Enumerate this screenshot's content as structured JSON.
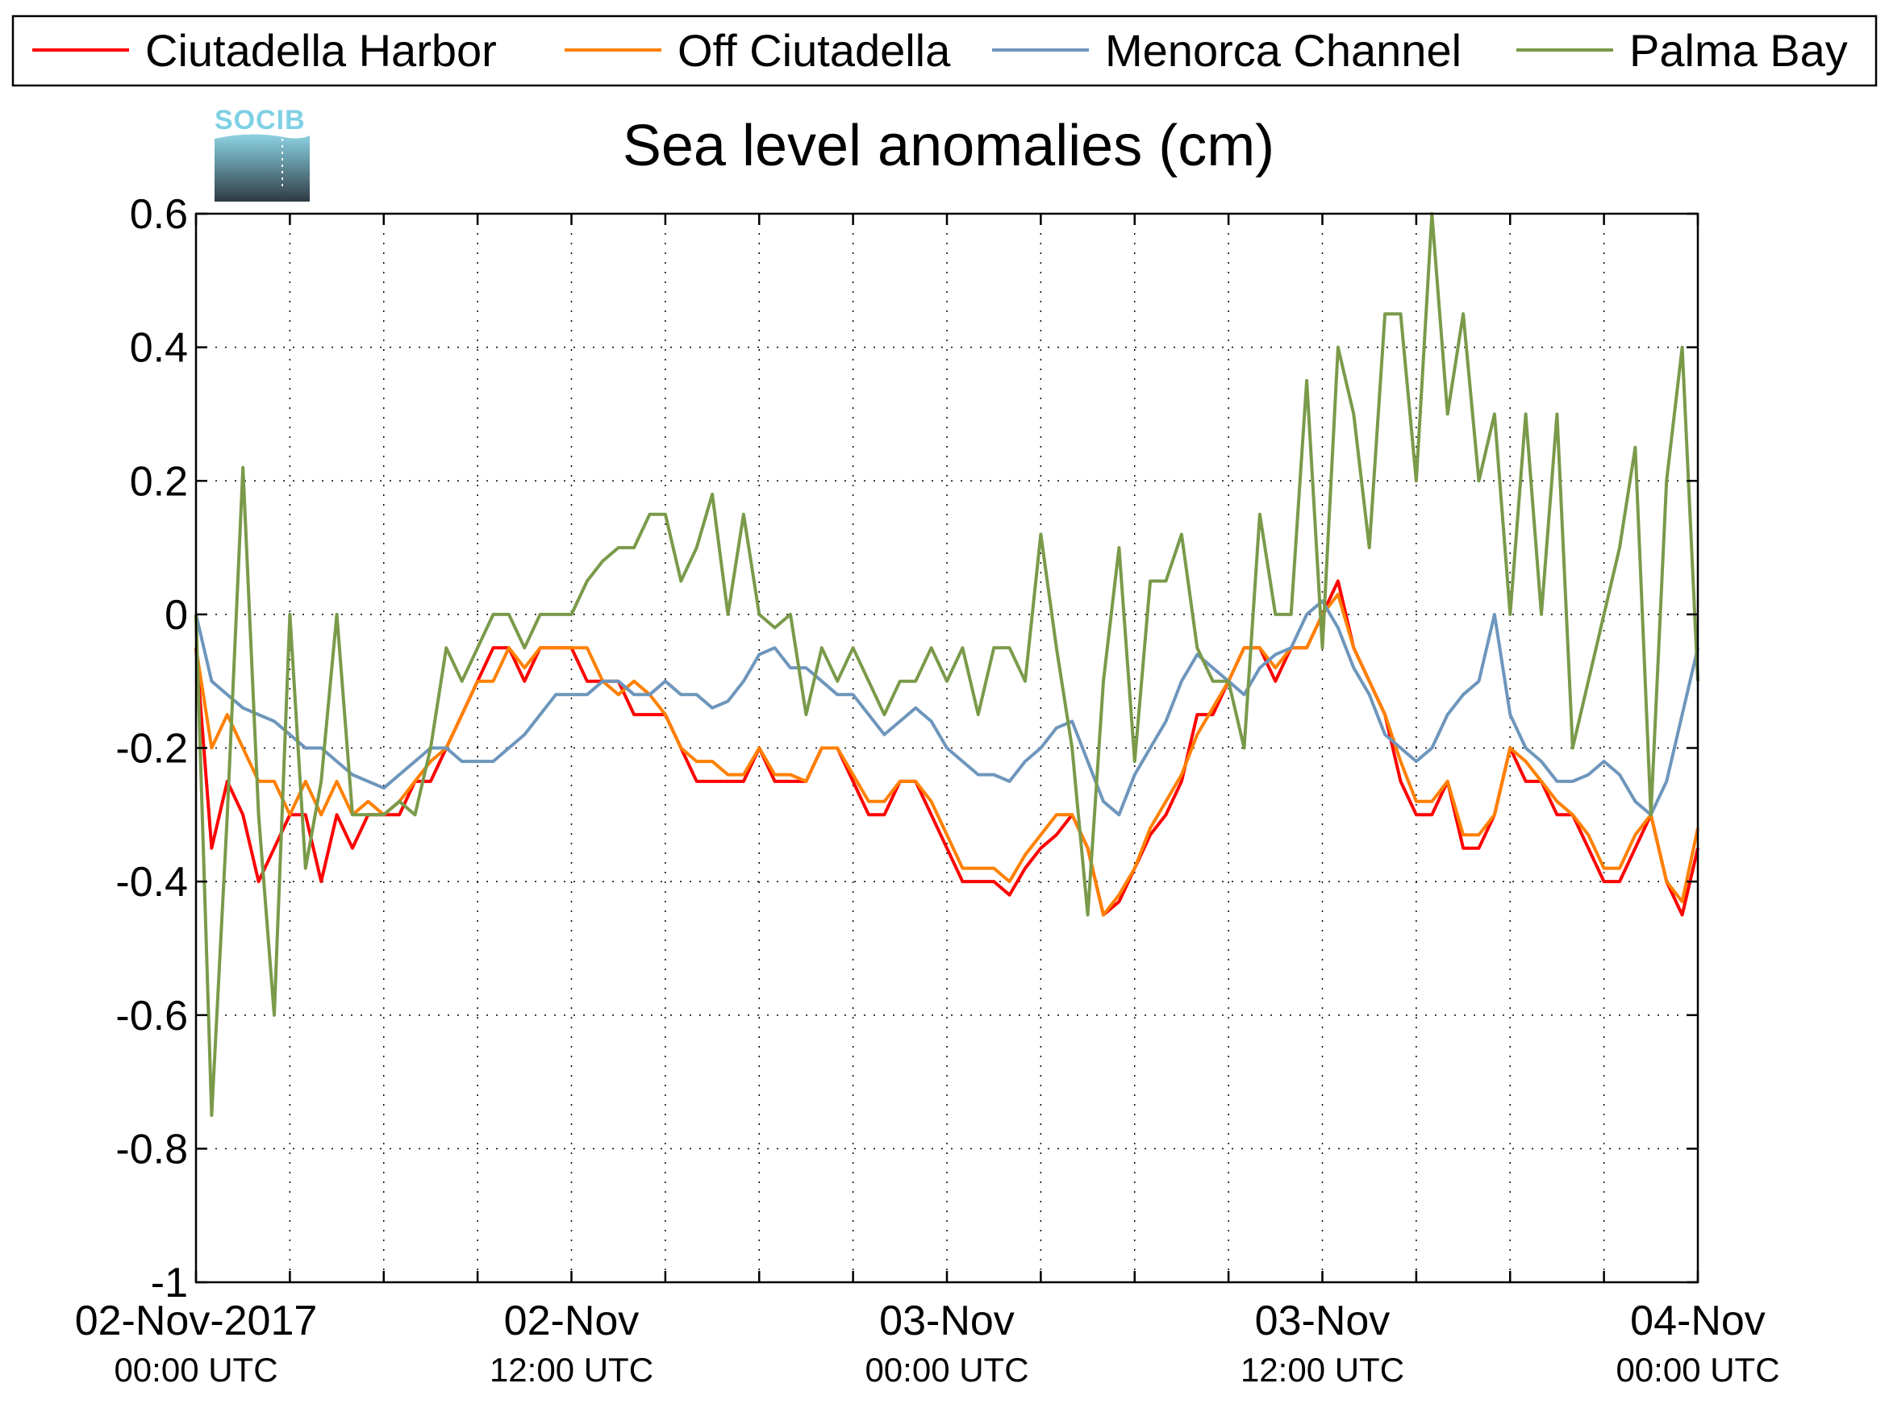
{
  "logo": {
    "text": "SOCIB"
  },
  "chart_data": {
    "type": "line",
    "title": "Sea level anomalies (cm)",
    "xlabel": "",
    "ylabel": "",
    "ylim": [
      -1,
      0.6
    ],
    "xlim_hours": [
      0,
      48
    ],
    "y_ticks": [
      {
        "value": 0.6,
        "label": "0.6"
      },
      {
        "value": 0.4,
        "label": "0.4"
      },
      {
        "value": 0.2,
        "label": "0.2"
      },
      {
        "value": 0,
        "label": "0"
      },
      {
        "value": -0.2,
        "label": "-0.2"
      },
      {
        "value": -0.4,
        "label": "-0.4"
      },
      {
        "value": -0.6,
        "label": "-0.6"
      },
      {
        "value": -0.8,
        "label": "-0.8"
      },
      {
        "value": -1,
        "label": "-1"
      }
    ],
    "x_ticks": [
      {
        "hour": 0,
        "date": "02-Nov-2017",
        "time": "00:00 UTC"
      },
      {
        "hour": 12,
        "date": "02-Nov",
        "time": "12:00 UTC"
      },
      {
        "hour": 24,
        "date": "03-Nov",
        "time": "00:00 UTC"
      },
      {
        "hour": 36,
        "date": "03-Nov",
        "time": "12:00 UTC"
      },
      {
        "hour": 48,
        "date": "04-Nov",
        "time": "00:00 UTC"
      }
    ],
    "x_minor_hours": [
      3,
      6,
      9,
      15,
      18,
      21,
      27,
      30,
      33,
      39,
      42,
      45
    ],
    "grid": true,
    "legend_position": "top",
    "series": [
      {
        "name": "Ciutadella Harbor",
        "color": "#ff0000",
        "x": [
          0,
          0.5,
          1,
          1.5,
          2,
          2.5,
          3,
          3.5,
          4,
          4.5,
          5,
          5.5,
          6,
          6.5,
          7,
          7.5,
          8,
          8.5,
          9,
          9.5,
          10,
          10.5,
          11,
          11.5,
          12,
          12.5,
          13,
          13.5,
          14,
          14.5,
          15,
          15.5,
          16,
          16.5,
          17,
          17.5,
          18,
          18.5,
          19,
          19.5,
          20,
          20.5,
          21,
          21.5,
          22,
          22.5,
          23,
          23.5,
          24,
          24.5,
          25,
          25.5,
          26,
          26.5,
          27,
          27.5,
          28,
          28.5,
          29,
          29.5,
          30,
          30.5,
          31,
          31.5,
          32,
          32.5,
          33,
          33.5,
          34,
          34.5,
          35,
          35.5,
          36,
          36.5,
          37,
          37.5,
          38,
          38.5,
          39,
          39.5,
          40,
          40.5,
          41,
          41.5,
          42,
          42.5,
          43,
          43.5,
          44,
          44.5,
          45,
          45.5,
          46,
          46.5,
          47,
          47.5,
          48
        ],
        "y": [
          -0.05,
          -0.35,
          -0.25,
          -0.3,
          -0.4,
          -0.35,
          -0.3,
          -0.3,
          -0.4,
          -0.3,
          -0.35,
          -0.3,
          -0.3,
          -0.3,
          -0.25,
          -0.25,
          -0.2,
          -0.15,
          -0.1,
          -0.05,
          -0.05,
          -0.1,
          -0.05,
          -0.05,
          -0.05,
          -0.1,
          -0.1,
          -0.1,
          -0.15,
          -0.15,
          -0.15,
          -0.2,
          -0.25,
          -0.25,
          -0.25,
          -0.25,
          -0.2,
          -0.25,
          -0.25,
          -0.25,
          -0.2,
          -0.2,
          -0.25,
          -0.3,
          -0.3,
          -0.25,
          -0.25,
          -0.3,
          -0.35,
          -0.4,
          -0.4,
          -0.4,
          -0.42,
          -0.38,
          -0.35,
          -0.33,
          -0.3,
          -0.35,
          -0.45,
          -0.43,
          -0.38,
          -0.33,
          -0.3,
          -0.25,
          -0.15,
          -0.15,
          -0.1,
          -0.05,
          -0.05,
          -0.1,
          -0.05,
          -0.05,
          0.0,
          0.05,
          -0.05,
          -0.1,
          -0.15,
          -0.25,
          -0.3,
          -0.3,
          -0.25,
          -0.35,
          -0.35,
          -0.3,
          -0.2,
          -0.25,
          -0.25,
          -0.3,
          -0.3,
          -0.35,
          -0.4,
          -0.4,
          -0.35,
          -0.3,
          -0.4,
          -0.45,
          -0.35
        ]
      },
      {
        "name": "Off Ciutadella",
        "color": "#ff8000",
        "x": [
          0,
          0.5,
          1,
          1.5,
          2,
          2.5,
          3,
          3.5,
          4,
          4.5,
          5,
          5.5,
          6,
          6.5,
          7,
          7.5,
          8,
          8.5,
          9,
          9.5,
          10,
          10.5,
          11,
          11.5,
          12,
          12.5,
          13,
          13.5,
          14,
          14.5,
          15,
          15.5,
          16,
          16.5,
          17,
          17.5,
          18,
          18.5,
          19,
          19.5,
          20,
          20.5,
          21,
          21.5,
          22,
          22.5,
          23,
          23.5,
          24,
          24.5,
          25,
          25.5,
          26,
          26.5,
          27,
          27.5,
          28,
          28.5,
          29,
          29.5,
          30,
          30.5,
          31,
          31.5,
          32,
          32.5,
          33,
          33.5,
          34,
          34.5,
          35,
          35.5,
          36,
          36.5,
          37,
          37.5,
          38,
          38.5,
          39,
          39.5,
          40,
          40.5,
          41,
          41.5,
          42,
          42.5,
          43,
          43.5,
          44,
          44.5,
          45,
          45.5,
          46,
          46.5,
          47,
          47.5,
          48
        ],
        "y": [
          -0.05,
          -0.2,
          -0.15,
          -0.2,
          -0.25,
          -0.25,
          -0.3,
          -0.25,
          -0.3,
          -0.25,
          -0.3,
          -0.28,
          -0.3,
          -0.28,
          -0.25,
          -0.22,
          -0.2,
          -0.15,
          -0.1,
          -0.1,
          -0.05,
          -0.08,
          -0.05,
          -0.05,
          -0.05,
          -0.05,
          -0.1,
          -0.12,
          -0.1,
          -0.12,
          -0.15,
          -0.2,
          -0.22,
          -0.22,
          -0.24,
          -0.24,
          -0.2,
          -0.24,
          -0.24,
          -0.25,
          -0.2,
          -0.2,
          -0.24,
          -0.28,
          -0.28,
          -0.25,
          -0.25,
          -0.28,
          -0.33,
          -0.38,
          -0.38,
          -0.38,
          -0.4,
          -0.36,
          -0.33,
          -0.3,
          -0.3,
          -0.35,
          -0.45,
          -0.42,
          -0.38,
          -0.32,
          -0.28,
          -0.24,
          -0.18,
          -0.14,
          -0.1,
          -0.05,
          -0.05,
          -0.08,
          -0.05,
          -0.05,
          0.0,
          0.03,
          -0.05,
          -0.1,
          -0.15,
          -0.22,
          -0.28,
          -0.28,
          -0.25,
          -0.33,
          -0.33,
          -0.3,
          -0.2,
          -0.22,
          -0.25,
          -0.28,
          -0.3,
          -0.33,
          -0.38,
          -0.38,
          -0.33,
          -0.3,
          -0.4,
          -0.43,
          -0.32
        ]
      },
      {
        "name": "Menorca Channel",
        "color": "#6e96bc",
        "x": [
          0,
          0.5,
          1,
          1.5,
          2,
          2.5,
          3,
          3.5,
          4,
          4.5,
          5,
          5.5,
          6,
          6.5,
          7,
          7.5,
          8,
          8.5,
          9,
          9.5,
          10,
          10.5,
          11,
          11.5,
          12,
          12.5,
          13,
          13.5,
          14,
          14.5,
          15,
          15.5,
          16,
          16.5,
          17,
          17.5,
          18,
          18.5,
          19,
          19.5,
          20,
          20.5,
          21,
          21.5,
          22,
          22.5,
          23,
          23.5,
          24,
          24.5,
          25,
          25.5,
          26,
          26.5,
          27,
          27.5,
          28,
          28.5,
          29,
          29.5,
          30,
          30.5,
          31,
          31.5,
          32,
          32.5,
          33,
          33.5,
          34,
          34.5,
          35,
          35.5,
          36,
          36.5,
          37,
          37.5,
          38,
          38.5,
          39,
          39.5,
          40,
          40.5,
          41,
          41.5,
          42,
          42.5,
          43,
          43.5,
          44,
          44.5,
          45,
          45.5,
          46,
          46.5,
          47,
          47.5,
          48
        ],
        "y": [
          0.0,
          -0.1,
          -0.12,
          -0.14,
          -0.15,
          -0.16,
          -0.18,
          -0.2,
          -0.2,
          -0.22,
          -0.24,
          -0.25,
          -0.26,
          -0.24,
          -0.22,
          -0.2,
          -0.2,
          -0.22,
          -0.22,
          -0.22,
          -0.2,
          -0.18,
          -0.15,
          -0.12,
          -0.12,
          -0.12,
          -0.1,
          -0.1,
          -0.12,
          -0.12,
          -0.1,
          -0.12,
          -0.12,
          -0.14,
          -0.13,
          -0.1,
          -0.06,
          -0.05,
          -0.08,
          -0.08,
          -0.1,
          -0.12,
          -0.12,
          -0.15,
          -0.18,
          -0.16,
          -0.14,
          -0.16,
          -0.2,
          -0.22,
          -0.24,
          -0.24,
          -0.25,
          -0.22,
          -0.2,
          -0.17,
          -0.16,
          -0.22,
          -0.28,
          -0.3,
          -0.24,
          -0.2,
          -0.16,
          -0.1,
          -0.06,
          -0.08,
          -0.1,
          -0.12,
          -0.08,
          -0.06,
          -0.05,
          0.0,
          0.02,
          -0.02,
          -0.08,
          -0.12,
          -0.18,
          -0.2,
          -0.22,
          -0.2,
          -0.15,
          -0.12,
          -0.1,
          0.0,
          -0.15,
          -0.2,
          -0.22,
          -0.25,
          -0.25,
          -0.24,
          -0.22,
          -0.24,
          -0.28,
          -0.3,
          -0.25,
          -0.15,
          -0.05
        ]
      },
      {
        "name": "Palma Bay",
        "color": "#7a9a4a",
        "x": [
          0,
          0.5,
          1,
          1.5,
          2,
          2.5,
          3,
          3.5,
          4,
          4.5,
          5,
          5.5,
          6,
          6.5,
          7,
          7.5,
          8,
          8.5,
          9,
          9.5,
          10,
          10.5,
          11,
          11.5,
          12,
          12.5,
          13,
          13.5,
          14,
          14.5,
          15,
          15.5,
          16,
          16.5,
          17,
          17.5,
          18,
          18.5,
          19,
          19.5,
          20,
          20.5,
          21,
          21.5,
          22,
          22.5,
          23,
          23.5,
          24,
          24.5,
          25,
          25.5,
          26,
          26.5,
          27,
          27.5,
          28,
          28.5,
          29,
          29.5,
          30,
          30.5,
          31,
          31.5,
          32,
          32.5,
          33,
          33.5,
          34,
          34.5,
          35,
          35.5,
          36,
          36.5,
          37,
          37.5,
          38,
          38.5,
          39,
          39.5,
          40,
          40.5,
          41,
          41.5,
          42,
          42.5,
          43,
          43.5,
          44,
          44.5,
          45,
          45.5,
          46,
          46.5,
          47,
          47.5,
          48
        ],
        "y": [
          0.0,
          -0.75,
          -0.3,
          0.22,
          -0.3,
          -0.6,
          0.0,
          -0.38,
          -0.25,
          0.0,
          -0.3,
          -0.3,
          -0.3,
          -0.28,
          -0.3,
          -0.2,
          -0.05,
          -0.1,
          -0.05,
          0.0,
          0.0,
          -0.05,
          0.0,
          0.0,
          0.0,
          0.05,
          0.08,
          0.1,
          0.1,
          0.15,
          0.15,
          0.05,
          0.1,
          0.18,
          0.0,
          0.15,
          0.0,
          -0.02,
          0.0,
          -0.15,
          -0.05,
          -0.1,
          -0.05,
          -0.1,
          -0.15,
          -0.1,
          -0.1,
          -0.05,
          -0.1,
          -0.05,
          -0.15,
          -0.05,
          -0.05,
          -0.1,
          0.12,
          -0.05,
          -0.2,
          -0.45,
          -0.1,
          0.1,
          -0.22,
          0.05,
          0.05,
          0.12,
          -0.05,
          -0.1,
          -0.1,
          -0.2,
          0.15,
          0.0,
          0.0,
          0.35,
          -0.05,
          0.4,
          0.3,
          0.1,
          0.45,
          0.45,
          0.2,
          0.6,
          0.3,
          0.45,
          0.2,
          0.3,
          0.0,
          0.3,
          0.0,
          0.3,
          -0.2,
          -0.1,
          0.0,
          0.1,
          0.25,
          -0.3,
          0.2,
          0.4,
          -0.1
        ]
      }
    ]
  }
}
